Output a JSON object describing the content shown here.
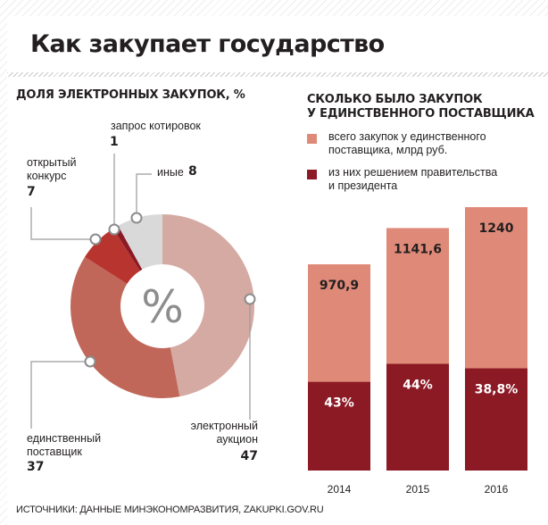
{
  "title": "Как закупает государство",
  "donut": {
    "heading": "ДОЛЯ ЭЛЕКТРОННЫХ ЗАКУПОК, %",
    "center_symbol": "%"
  },
  "bars": {
    "heading_line1": "СКОЛЬКО БЫЛО ЗАКУПОК",
    "heading_line2": "У ЕДИНСТВЕННОГО ПОСТАВЩИКА"
  },
  "legend": [
    {
      "line1": "всего закупок у единственного",
      "line2": "поставщика, млрд руб.",
      "color": "#df8a78"
    },
    {
      "line1": "из них решением правительства",
      "line2": "и президента",
      "color": "#8b1a25"
    }
  ],
  "source": "ИСТОЧНИКИ: ДАННЫЕ МИНЭКОНОМРАЗВИТИЯ, ZAKUPKI.GOV.RU",
  "chart_data": [
    {
      "type": "pie",
      "title": "ДОЛЯ ЭЛЕКТРОННЫХ ЗАКУПОК, %",
      "slices": [
        {
          "label": "электронный аукцион",
          "label_line1": "электронный",
          "label_line2": "аукцион",
          "value": 47,
          "color": "#d5aaa2"
        },
        {
          "label": "единственный поставщик",
          "label_line1": "единственный",
          "label_line2": "поставщик",
          "value": 37,
          "color": "#c0675a"
        },
        {
          "label": "открытый конкурс",
          "label_line1": "открытый",
          "label_line2": "конкурс",
          "value": 7,
          "color": "#b8342f"
        },
        {
          "label": "запрос котировок",
          "label_line1": "запрос котировок",
          "label_line2": "",
          "value": 1,
          "color": "#8b1a25"
        },
        {
          "label": "иные",
          "label_line1": "иные",
          "label_line2": "",
          "value": 8,
          "color": "#d9d9d9"
        }
      ]
    },
    {
      "type": "bar",
      "title": "СКОЛЬКО БЫЛО ЗАКУПОК У ЕДИНСТВЕННОГО ПОСТАВЩИКА",
      "categories": [
        "2014",
        "2015",
        "2016"
      ],
      "series": [
        {
          "name": "всего закупок у единственного поставщика, млрд руб.",
          "values": [
            970.9,
            1141.6,
            1240
          ],
          "labels": [
            "970,9",
            "1141,6",
            "1240"
          ],
          "color": "#df8a78"
        },
        {
          "name": "из них решением правительства и президента",
          "values": [
            43,
            44,
            38.8
          ],
          "labels": [
            "43%",
            "44%",
            "38,8%"
          ],
          "color": "#8b1a25"
        }
      ],
      "ylim": [
        0,
        1240
      ]
    }
  ]
}
